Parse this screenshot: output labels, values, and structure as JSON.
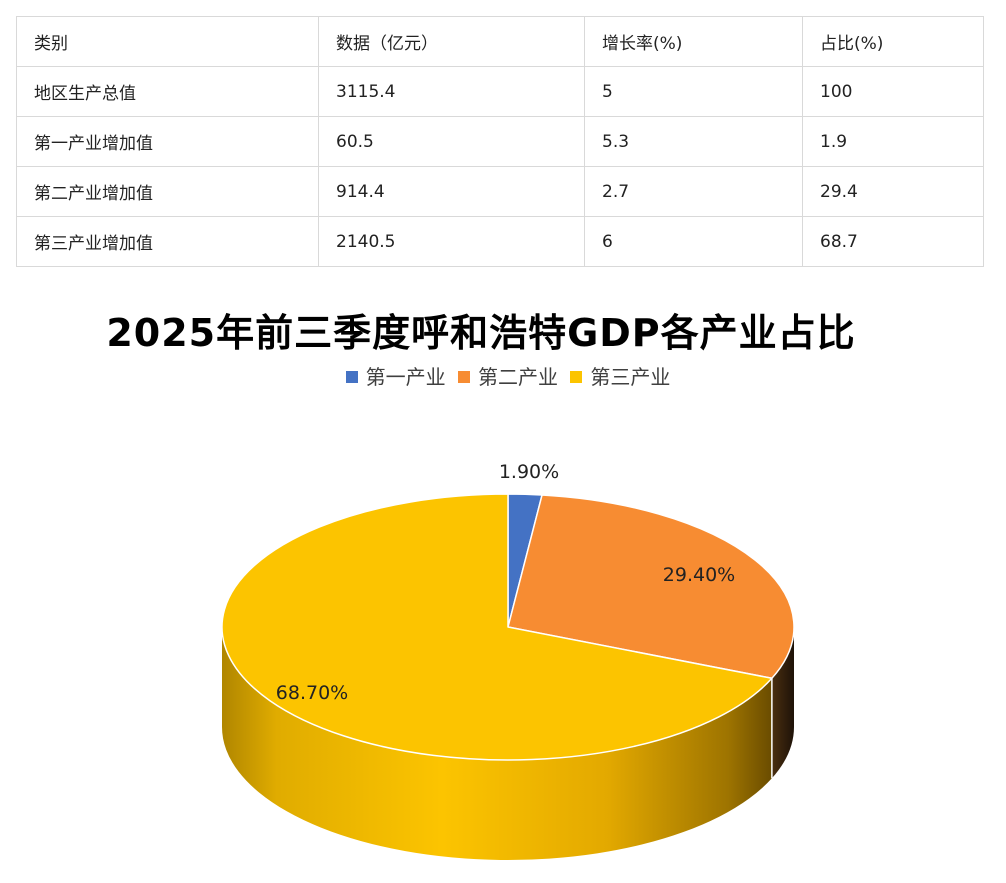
{
  "table": {
    "headers": [
      "类别",
      "数据（亿元）",
      "增长率(%)",
      "占比(%)"
    ],
    "rows": [
      [
        "地区生产总值",
        "3115.4",
        "5",
        "100"
      ],
      [
        "第一产业增加值",
        "60.5",
        "5.3",
        "1.9"
      ],
      [
        "第二产业增加值",
        "914.4",
        "2.7",
        "29.4"
      ],
      [
        "第三产业增加值",
        "2140.5",
        "6",
        "68.7"
      ]
    ]
  },
  "chart_data": {
    "type": "pie",
    "title": "2025年前三季度呼和浩特GDP各产业占比",
    "legend_position": "top",
    "style": "3d",
    "categories": [
      "第一产业",
      "第二产业",
      "第三产业"
    ],
    "values": [
      1.9,
      29.4,
      68.7
    ],
    "data_labels": [
      "1.90%",
      "29.40%",
      "68.70%"
    ],
    "colors": [
      "#4472c4",
      "#f78c32",
      "#fcc400"
    ]
  }
}
